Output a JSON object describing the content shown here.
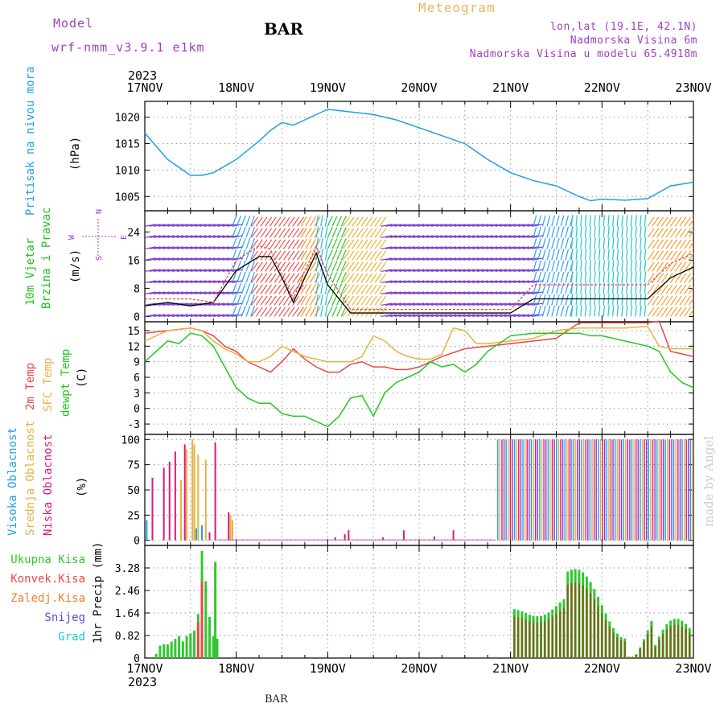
{
  "header": {
    "model_label": "Model",
    "model_name": "wrf-nmm_v3.9.1 e1km",
    "station": "BAR",
    "title": "Meteogram",
    "location_lines": [
      "lon,lat (19.1E, 42.1N)",
      "Nadmorska Visina 6m",
      "Nadmorska Visina u modelu 65.4918m"
    ],
    "credit": "made by Angel"
  },
  "footer": {
    "station": "BAR"
  },
  "time_axis": {
    "year": "2023",
    "ticks": [
      "17NOV",
      "18NOV",
      "19NOV",
      "20NOV",
      "21NOV",
      "22NOV",
      "23NOV"
    ],
    "range_hours": [
      0,
      144
    ]
  },
  "colors": {
    "pressure": "#1ea0e6",
    "wind_label": "#20c020",
    "temp2m": "#e84848",
    "sfc_temp": "#e8b040",
    "dewpoint": "#20c820",
    "cloud_high": "#1ea0e6",
    "cloud_mid": "#e8b040",
    "cloud_low": "#e01878",
    "precip_total": "#30c830",
    "precip_conv": "#e84848",
    "precip_ice": "#f08030",
    "precip_snow": "#5050e0",
    "precip_grad": "#20c8c8",
    "purple": "#a040c0"
  },
  "chart_data": [
    {
      "type": "line",
      "name": "pressure",
      "ylabel_lines": [
        "Pritisak na nivou mora"
      ],
      "unit": "(hPa)",
      "ylim": [
        1002.3,
        1023
      ],
      "yticks": [
        1005,
        1010,
        1015,
        1020
      ],
      "grid": true,
      "series": [
        {
          "name": "",
          "x": [
            0,
            6,
            12,
            15,
            18,
            24,
            30,
            33,
            36,
            39,
            42,
            48,
            54,
            60,
            66,
            72,
            78,
            84,
            90,
            96,
            102,
            108,
            114,
            117,
            120,
            126,
            132,
            135,
            138,
            144
          ],
          "y": [
            1017.0,
            1012.0,
            1009.0,
            1009.0,
            1009.5,
            1012.0,
            1015.5,
            1017.5,
            1019.0,
            1018.5,
            1019.5,
            1021.5,
            1021.0,
            1020.5,
            1019.5,
            1018.0,
            1016.5,
            1015.0,
            1012.0,
            1009.5,
            1008.0,
            1007.0,
            1005.0,
            1004.2,
            1004.5,
            1004.3,
            1004.6,
            1005.8,
            1007.0,
            1007.7
          ]
        }
      ]
    },
    {
      "type": "line",
      "name": "wind",
      "ylabel_lines": [
        "10m Vjetar",
        "Brzina i Pravac"
      ],
      "unit": "(m/s)",
      "direction_legend": [
        "N",
        "E",
        "S",
        "W"
      ],
      "ylim": [
        -1.5,
        30
      ],
      "yticks": [
        0,
        8,
        16,
        24
      ],
      "grid": false,
      "series": [
        {
          "name": "",
          "x": [
            0,
            6,
            12,
            18,
            24,
            30,
            33,
            36,
            39,
            42,
            45,
            48,
            54,
            60,
            66,
            72,
            78,
            84,
            90,
            96,
            102,
            108,
            114,
            120,
            126,
            132,
            138,
            144
          ],
          "y": [
            3,
            4,
            3,
            4,
            13,
            17,
            17,
            11,
            4,
            11,
            18,
            9,
            1,
            1,
            1,
            1,
            1,
            1,
            1,
            1,
            5,
            5,
            5,
            5,
            5,
            5,
            11,
            14
          ]
        },
        {
          "name": "",
          "x": [
            0,
            6,
            12,
            18,
            24,
            30,
            33,
            36,
            39,
            42,
            45,
            48,
            54,
            60,
            66,
            72,
            78,
            84,
            90,
            96,
            102,
            108,
            114,
            120,
            126,
            132,
            138,
            144
          ],
          "y": [
            5,
            5,
            5,
            4,
            16,
            20,
            19,
            12,
            5,
            13,
            20,
            12,
            2,
            2,
            2,
            2,
            2,
            2,
            2,
            2,
            9,
            9,
            9,
            9,
            9,
            9,
            15,
            18
          ]
        }
      ]
    },
    {
      "type": "line",
      "name": "temperature",
      "ylabel_lines": [
        "2m Temp",
        "SFC Temp",
        "dewpt Temp"
      ],
      "unit": "(C)",
      "ylim": [
        -5,
        16.7
      ],
      "yticks": [
        -3,
        0,
        3,
        6,
        9,
        12,
        15
      ],
      "grid": true,
      "series": [
        {
          "name": "2m Temp",
          "x": [
            0,
            6,
            12,
            15,
            18,
            21,
            24,
            27,
            30,
            33,
            36,
            39,
            42,
            45,
            48,
            51,
            54,
            57,
            60,
            63,
            66,
            69,
            72,
            78,
            84,
            90,
            96,
            102,
            108,
            114,
            120,
            126,
            132,
            135,
            138,
            144
          ],
          "y": [
            14.5,
            15.0,
            15.5,
            15.0,
            14.0,
            12.0,
            11.0,
            9.0,
            8.0,
            7.0,
            9.0,
            11.5,
            9.5,
            8.0,
            7.0,
            7.0,
            8.5,
            9.0,
            8.0,
            8.0,
            7.5,
            7.5,
            8.0,
            10.0,
            11.5,
            12.0,
            12.5,
            13.0,
            13.5,
            16.5,
            16.5,
            16.5,
            16.5,
            16.8,
            11.0,
            10.0
          ]
        },
        {
          "name": "SFC Temp",
          "x": [
            0,
            6,
            12,
            15,
            18,
            21,
            24,
            27,
            30,
            33,
            36,
            39,
            42,
            45,
            48,
            51,
            54,
            57,
            60,
            63,
            66,
            69,
            72,
            75,
            78,
            81,
            84,
            87,
            90,
            96,
            102,
            108,
            114,
            120,
            126,
            132,
            135,
            138,
            144
          ],
          "y": [
            13.0,
            15.0,
            15.5,
            15.0,
            13.0,
            11.5,
            10.5,
            9.0,
            9.0,
            10.0,
            12.0,
            11.0,
            10.0,
            9.5,
            9.0,
            9.0,
            9.0,
            10.0,
            14.0,
            13.0,
            11.0,
            10.0,
            9.5,
            9.5,
            10.5,
            15.5,
            15.0,
            12.5,
            12.5,
            13.0,
            13.5,
            15.0,
            15.5,
            15.5,
            15.5,
            15.8,
            12.0,
            11.5,
            11.5
          ]
        },
        {
          "name": "dewpt Temp",
          "x": [
            0,
            3,
            6,
            9,
            12,
            15,
            18,
            21,
            24,
            27,
            30,
            33,
            36,
            39,
            42,
            45,
            48,
            51,
            54,
            57,
            60,
            63,
            66,
            69,
            72,
            75,
            78,
            81,
            84,
            87,
            90,
            96,
            102,
            108,
            114,
            117,
            120,
            126,
            132,
            135,
            138,
            141,
            144
          ],
          "y": [
            9.0,
            11.0,
            13.0,
            12.5,
            14.5,
            14.0,
            12.0,
            8.0,
            4.0,
            2.0,
            1.0,
            1.0,
            -1.0,
            -1.5,
            -1.5,
            -2.5,
            -3.5,
            -1.5,
            2.0,
            2.5,
            -1.5,
            3.0,
            5.0,
            6.0,
            7.0,
            9.0,
            8.0,
            8.5,
            7.0,
            8.5,
            11.0,
            14.0,
            14.5,
            14.5,
            14.5,
            14.0,
            14.0,
            13.0,
            12.0,
            11.0,
            7.0,
            5.0,
            4.0
          ]
        }
      ]
    },
    {
      "type": "bar",
      "name": "cloud_cover",
      "ylabel_lines": [
        "Visoka Oblacnost",
        "Srednja Oblacnost",
        "Niska Oblacnost"
      ],
      "unit": "(%)",
      "ylim": [
        -5,
        105
      ],
      "yticks": [
        0,
        25,
        50,
        75,
        100
      ],
      "grid": true,
      "series": [
        {
          "name": "Visoka Oblacnost",
          "x": [
            0.5,
            13.5,
            15.0
          ],
          "values": [
            20,
            12,
            15
          ]
        },
        {
          "name": "Srednja Oblacnost",
          "x": [
            9.5,
            11.0,
            12.5,
            13.0,
            14.0,
            16.0,
            22.5,
            23.0
          ],
          "values": [
            60,
            90,
            100,
            95,
            85,
            80,
            25,
            20
          ]
        },
        {
          "name": "Niska Oblacnost",
          "x": [
            2.0,
            5.0,
            6.5,
            8.0,
            10.5,
            17.0,
            18.5,
            22.0,
            50.0,
            52.5,
            53.5,
            62.5,
            68.0,
            76.0,
            81.0
          ],
          "values": [
            62,
            72,
            78,
            88,
            95,
            8,
            97,
            28,
            3,
            6,
            10,
            3,
            10,
            4,
            10
          ]
        }
      ]
    },
    {
      "type": "bar",
      "name": "precipitation",
      "ylabel_lines": [
        "Ukupna Kisa",
        "Konvek.Kisa",
        "Zaledj.Kisa",
        "Snijeg",
        "Grad"
      ],
      "unit": "1hr Precip (mm)",
      "ylim": [
        0,
        4.1
      ],
      "yticks": [
        0,
        0.82,
        1.64,
        2.46,
        3.28
      ],
      "grid": true,
      "series": [
        {
          "name": "Ukupna Kisa",
          "x": [
            3,
            4,
            5,
            6,
            7,
            8,
            9,
            10,
            11,
            12,
            13,
            14,
            15,
            16,
            17,
            18,
            19
          ],
          "values": [
            0.15,
            0.45,
            0.5,
            0.5,
            0.6,
            0.7,
            0.8,
            0.6,
            0.8,
            0.9,
            1.0,
            1.6,
            3.9,
            2.8,
            1.5,
            0.8,
            0.7
          ]
        },
        {
          "name": "Konvek.Kisa",
          "x": [
            14,
            15
          ],
          "values": [
            1.3,
            2.8
          ]
        }
      ]
    }
  ]
}
